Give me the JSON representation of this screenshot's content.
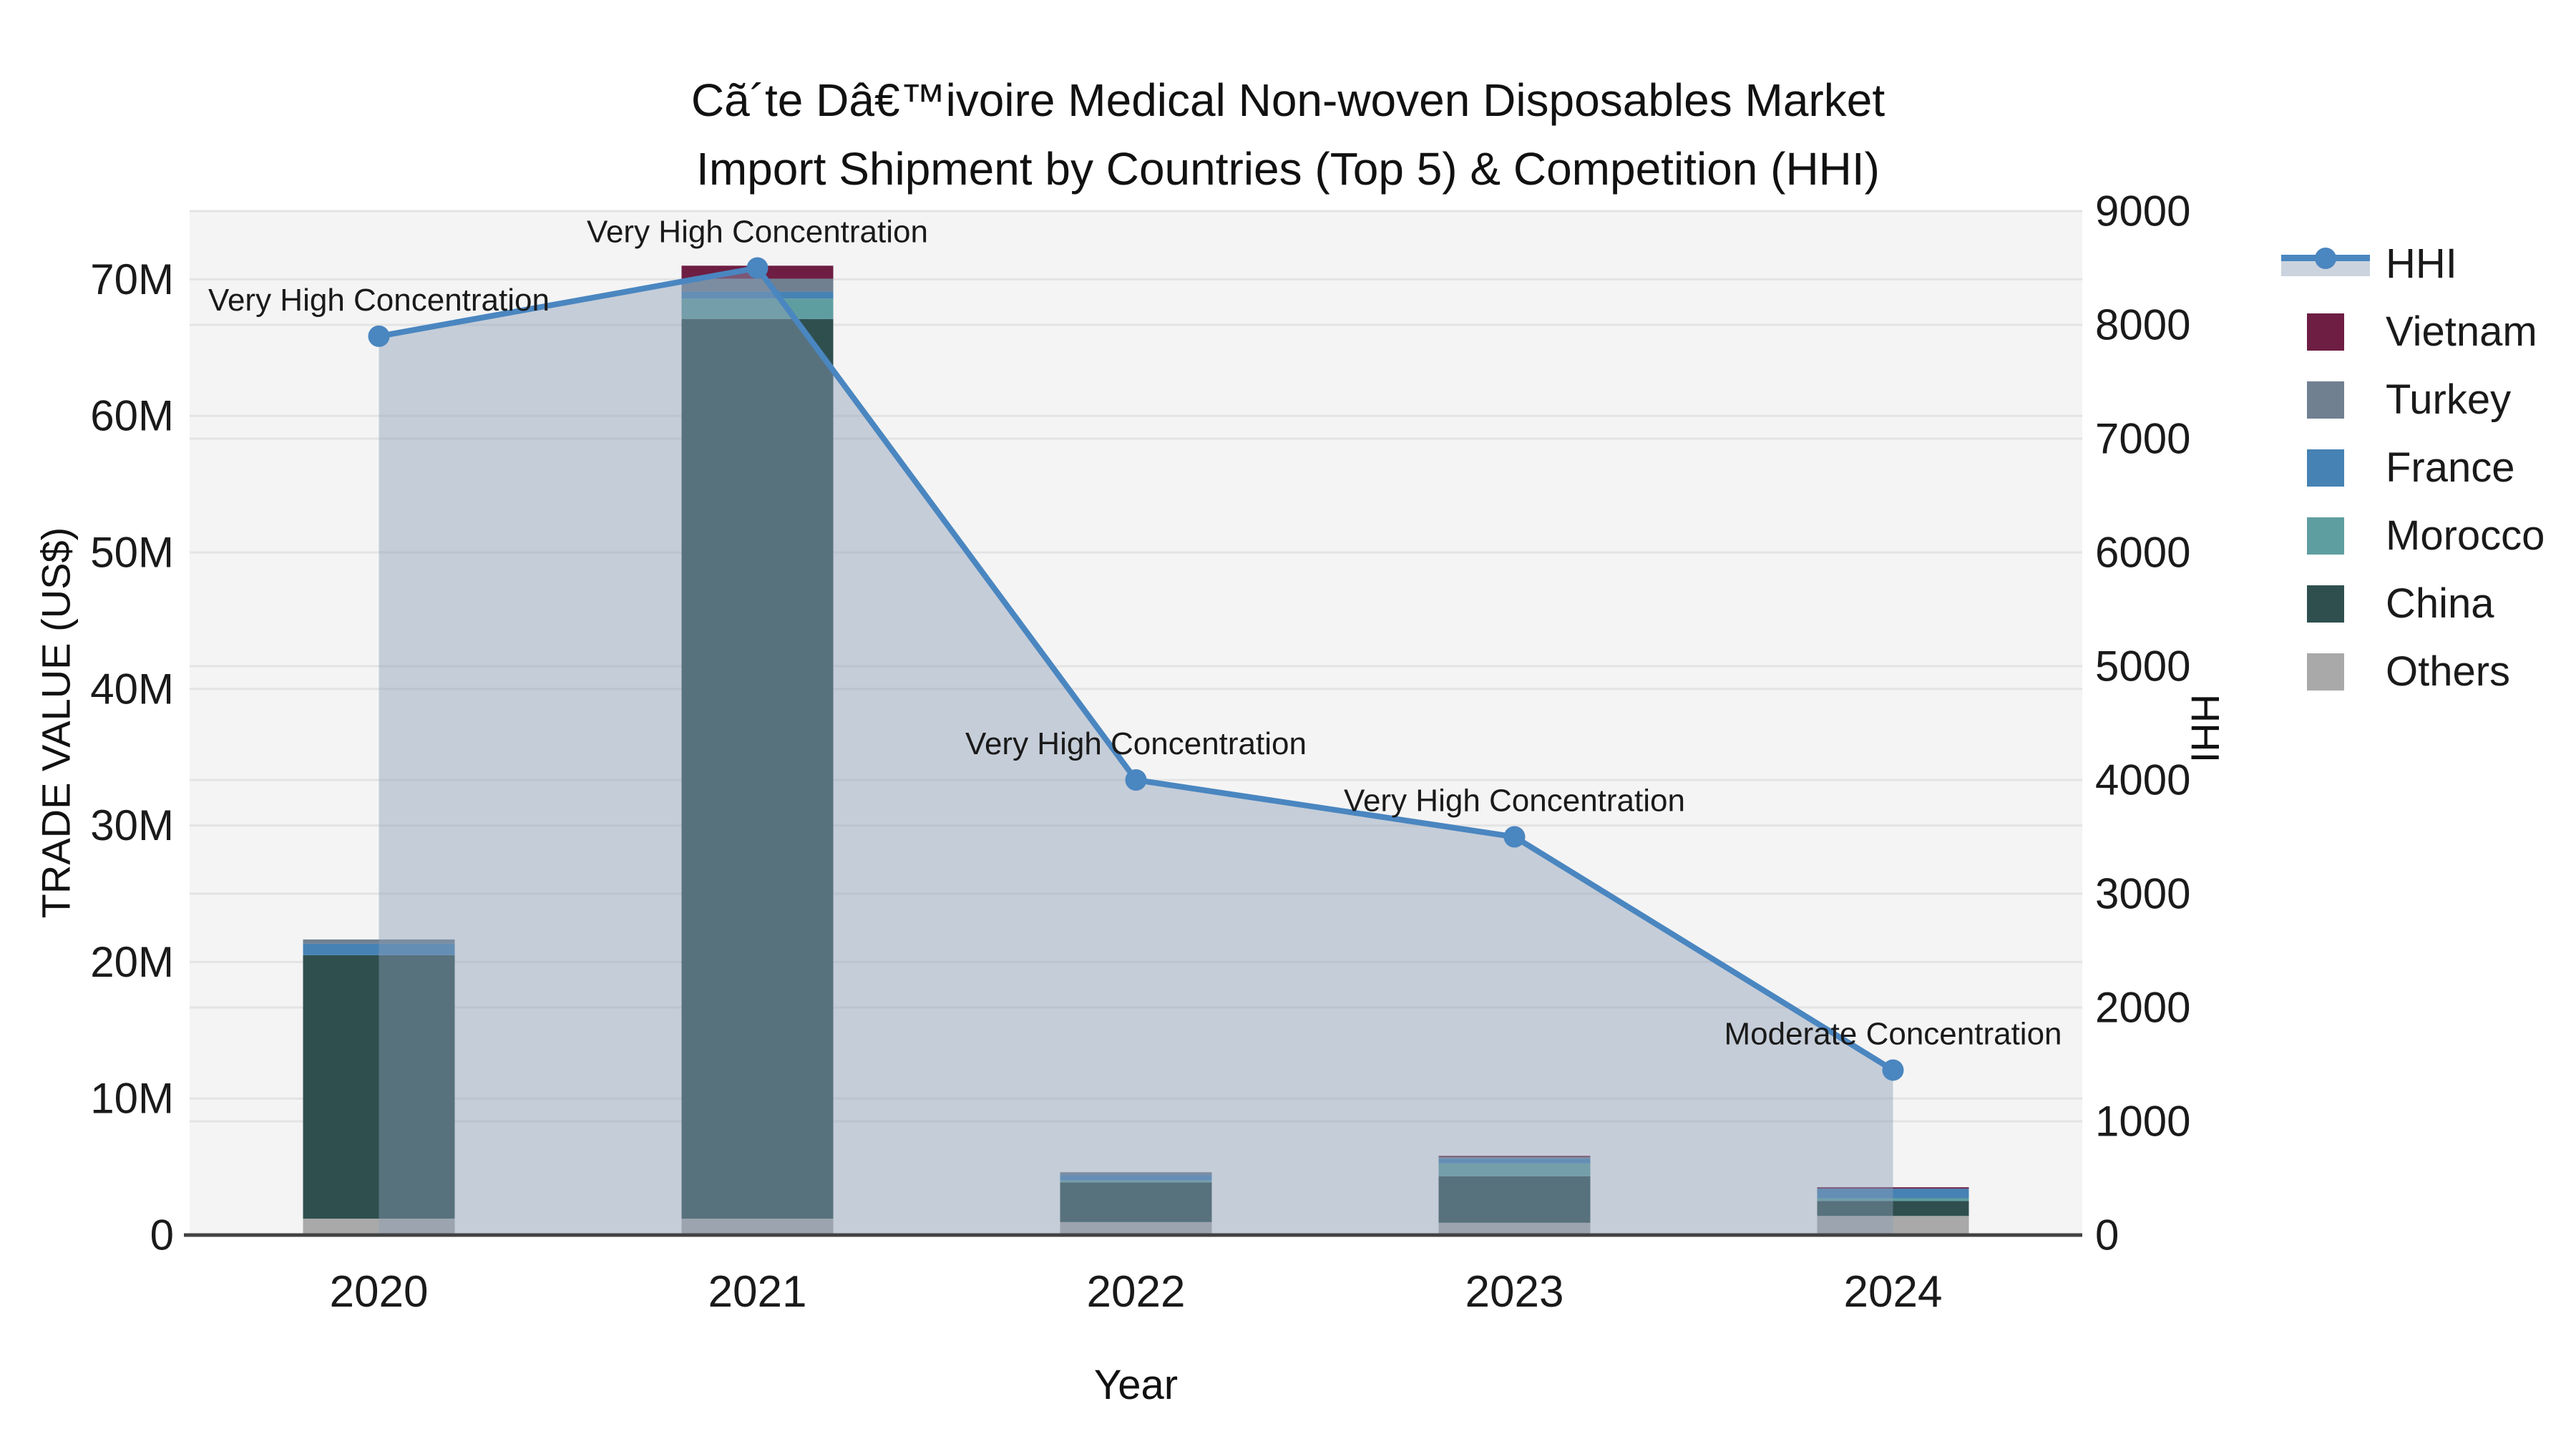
{
  "title": {
    "line1": "Cã´te Dâ€™ivoire Medical Non-woven Disposables Market",
    "line2": "Import Shipment by Countries (Top 5) & Competition (HHI)"
  },
  "legend": {
    "items": [
      {
        "label": "HHI",
        "type": "line",
        "color": "#4a86c0"
      },
      {
        "label": "Vietnam",
        "type": "box",
        "color": "#6E1E42"
      },
      {
        "label": "Turkey",
        "type": "box",
        "color": "#708090"
      },
      {
        "label": "France",
        "type": "box",
        "color": "#4682B4"
      },
      {
        "label": "Morocco",
        "type": "box",
        "color": "#5F9EA0"
      },
      {
        "label": "China",
        "type": "box",
        "color": "#2F4F4F"
      },
      {
        "label": "Others",
        "type": "box",
        "color": "#A9A9A9"
      }
    ]
  },
  "chart_data": {
    "type": "bar",
    "subtype": "stacked-bars-with-line",
    "categories": [
      "2020",
      "2021",
      "2022",
      "2023",
      "2024"
    ],
    "series": [
      {
        "name": "Others",
        "axis": "left",
        "color": "#A9A9A9",
        "values": [
          1200000,
          1200000,
          950000,
          900000,
          1400000
        ]
      },
      {
        "name": "China",
        "axis": "left",
        "color": "#2F4F4F",
        "values": [
          19300000,
          65900000,
          2900000,
          3400000,
          1100000
        ]
      },
      {
        "name": "Morocco",
        "axis": "left",
        "color": "#5F9EA0",
        "values": [
          0,
          1500000,
          150000,
          950000,
          200000
        ]
      },
      {
        "name": "France",
        "axis": "left",
        "color": "#4682B4",
        "values": [
          850000,
          500000,
          400000,
          350000,
          700000
        ]
      },
      {
        "name": "Turkey",
        "axis": "left",
        "color": "#708090",
        "values": [
          300000,
          950000,
          200000,
          100000,
          0
        ]
      },
      {
        "name": "Vietnam",
        "axis": "left",
        "color": "#6E1E42",
        "values": [
          0,
          950000,
          0,
          100000,
          100000
        ]
      }
    ],
    "line_series": {
      "name": "HHI",
      "axis": "right",
      "color": "#4a86c0",
      "area_fill_color": "rgba(139,157,181,0.45)",
      "values": [
        7900,
        8500,
        4000,
        3500,
        1450
      ]
    },
    "annotations": [
      {
        "x": "2020",
        "text": "Very High Concentration"
      },
      {
        "x": "2021",
        "text": "Very High Concentration"
      },
      {
        "x": "2022",
        "text": "Very High Concentration"
      },
      {
        "x": "2023",
        "text": "Very High Concentration"
      },
      {
        "x": "2024",
        "text": "Moderate Concentration"
      }
    ],
    "x_axis": {
      "title": "Year"
    },
    "y_left": {
      "title": "TRADE VALUE (US$)",
      "tick_labels": [
        "0",
        "10M",
        "20M",
        "30M",
        "40M",
        "50M",
        "60M",
        "70M"
      ],
      "tick_step": 10000000,
      "range": [
        0,
        75000000
      ]
    },
    "y_right": {
      "title": "HHI",
      "tick_labels": [
        "0",
        "1000",
        "2000",
        "3000",
        "4000",
        "5000",
        "6000",
        "7000",
        "8000",
        "9000"
      ],
      "tick_step": 1000,
      "range": [
        0,
        9000
      ]
    },
    "style": {
      "plot_bg": "#F4F4F4",
      "gridline": "#E3E3E3",
      "axis_line": "#424242",
      "tick_text": "#1a1a1a",
      "annotation_text": "#1a1a1a"
    }
  }
}
